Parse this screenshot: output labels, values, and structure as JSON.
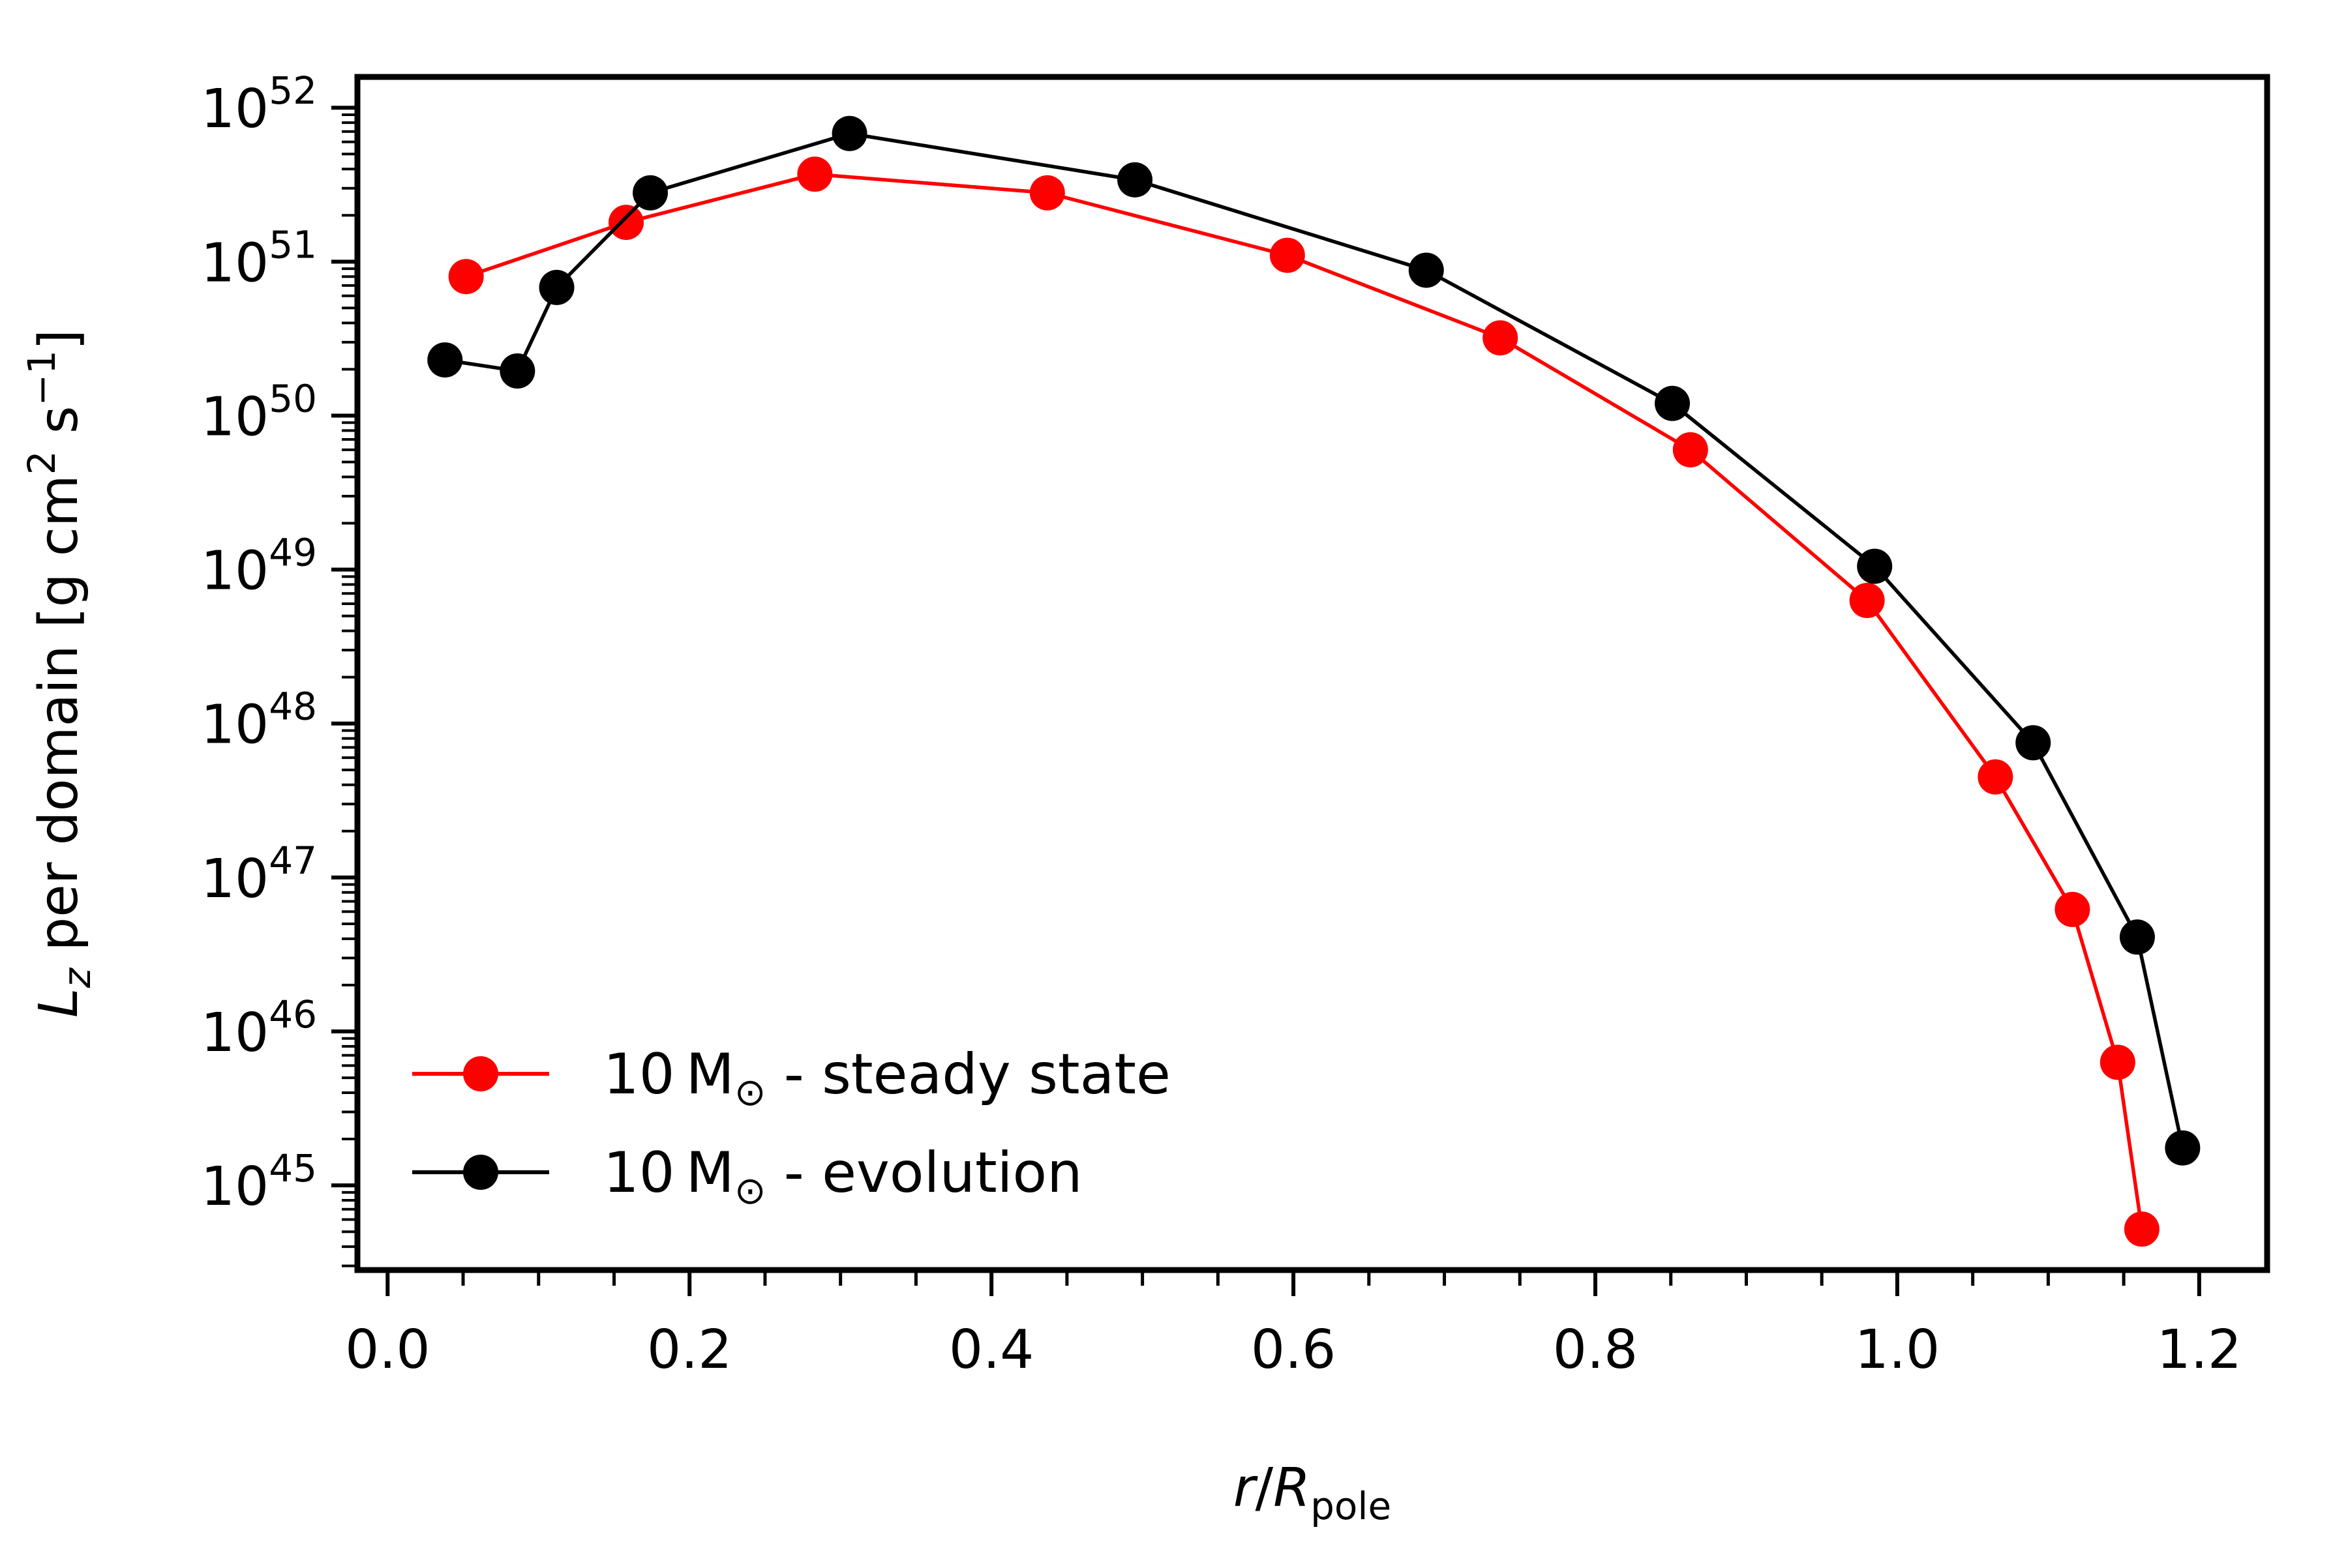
{
  "chart_data": {
    "type": "line",
    "title": "",
    "xlabel": "r/R_pole",
    "xlabel_parts": {
      "r": "r",
      "slash": "/",
      "R": "R",
      "sub": "pole"
    },
    "ylabel": "L_z per domain [g cm^2 s^-1]",
    "ylabel_parts": {
      "L": "L",
      "z": "z",
      "middle": " per domain [g cm",
      "two": "2",
      "s": " s",
      "minus_one": "−1",
      "close": "]"
    },
    "xlim": [
      -0.02,
      1.245
    ],
    "ylim_log10": [
      44.45,
      52.2
    ],
    "x_ticks": [
      0.0,
      0.2,
      0.4,
      0.6,
      0.8,
      1.0,
      1.2
    ],
    "x_tick_labels": [
      "0.0",
      "0.2",
      "0.4",
      "0.6",
      "0.8",
      "1.0",
      "1.2"
    ],
    "y_ticks_log10": [
      45,
      46,
      47,
      48,
      49,
      50,
      51,
      52
    ],
    "y_tick_base": "10",
    "y_tick_exponents": [
      "45",
      "46",
      "47",
      "48",
      "49",
      "50",
      "51",
      "52"
    ],
    "legend_position": "lower-left",
    "grid": false,
    "series": [
      {
        "name": "10 M⊙ - steady state",
        "label_text": "10 M",
        "label_sub": "⊙",
        "label_suffix": " - steady state",
        "color": "#ff0000",
        "x": [
          0.052,
          0.158,
          0.283,
          0.437,
          0.596,
          0.737,
          0.863,
          0.98,
          1.065,
          1.116,
          1.146,
          1.162
        ],
        "y": [
          8e+50,
          1.8e+51,
          3.7e+51,
          2.8e+51,
          1.1e+51,
          3.2e+50,
          6e+49,
          6.3e+48,
          4.5e+47,
          6.2e+46,
          6.3e+45,
          5.2e+44
        ]
      },
      {
        "name": "10 M⊙ - evolution",
        "label_text": "10 M",
        "label_sub": "⊙",
        "label_suffix": " - evolution",
        "color": "#000000",
        "x": [
          0.038,
          0.086,
          0.112,
          0.174,
          0.306,
          0.495,
          0.688,
          0.851,
          0.985,
          1.09,
          1.159,
          1.189
        ],
        "y": [
          2.3e+50,
          1.95e+50,
          6.8e+50,
          2.8e+51,
          6.8e+51,
          3.4e+51,
          8.8e+50,
          1.2e+50,
          1.05e+49,
          7.5e+47,
          4.1e+46,
          1.75e+45
        ]
      }
    ]
  }
}
